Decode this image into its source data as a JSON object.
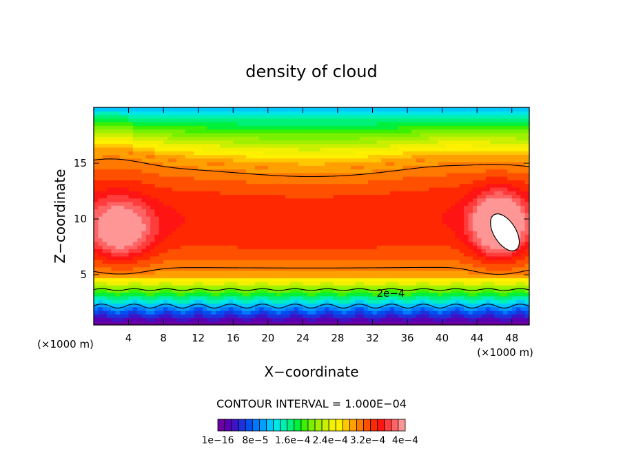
{
  "chart_data": {
    "type": "heatmap",
    "title": "density of cloud",
    "xlabel": "X−coordinate",
    "ylabel": "Z−coordinate",
    "x_unit": "(×1000 m)",
    "z_unit": "(×1000 m)",
    "xlim": [
      0,
      50
    ],
    "ylim": [
      0.5,
      20
    ],
    "x_ticks": [
      4,
      8,
      12,
      16,
      20,
      24,
      28,
      32,
      36,
      40,
      44,
      48
    ],
    "y_ticks": [
      5,
      10,
      15
    ],
    "contour_label": "2e−4",
    "contour_interval_text": "CONTOUR INTERVAL = 1.000E−04",
    "contour_interval": 0.0001,
    "colorbar_labels": [
      "1e−16",
      "8e−5",
      "1.6e−4",
      "2.4e−4",
      "3.2e−4",
      "4e−4"
    ],
    "colorbar_range": [
      0,
      0.0004
    ],
    "colorbar_steps": 27,
    "colors": [
      "#6a00a0",
      "#5a00b4",
      "#3c14c8",
      "#1e32dc",
      "#0050f0",
      "#0078ff",
      "#00a0ff",
      "#00c8ff",
      "#00e6e6",
      "#00f0b4",
      "#00f078",
      "#00f03c",
      "#3cf000",
      "#78f000",
      "#a0f000",
      "#c8f000",
      "#f0f000",
      "#fff000",
      "#ffc800",
      "#ffa000",
      "#ff7800",
      "#ff5000",
      "#ff2800",
      "#ff1414",
      "#ff3c3c",
      "#ff6464",
      "#ff9696"
    ],
    "peak_marker_color": "#ffffff"
  }
}
